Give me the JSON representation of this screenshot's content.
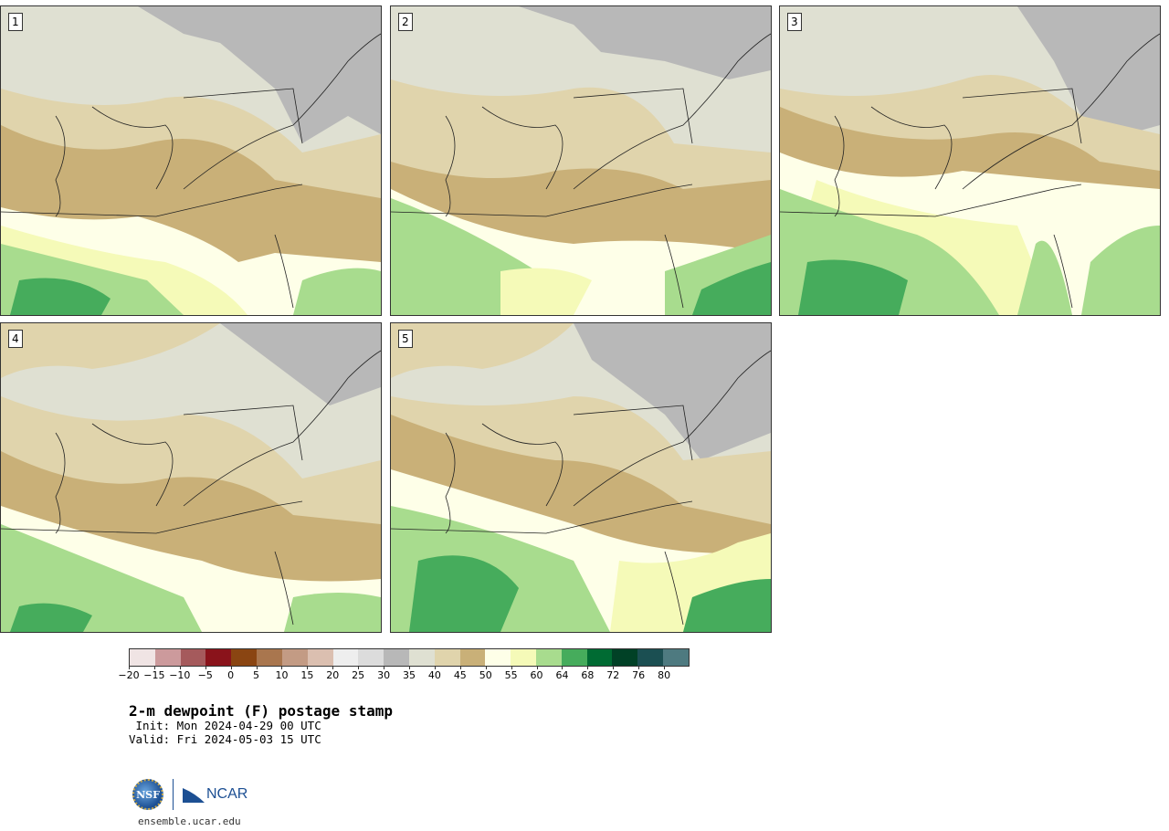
{
  "panels": [
    {
      "label": "1"
    },
    {
      "label": "2"
    },
    {
      "label": "3"
    },
    {
      "label": "4"
    },
    {
      "label": "5"
    }
  ],
  "colorbar": {
    "colors": [
      "#f0e4e4",
      "#cc9a9c",
      "#a55a5c",
      "#8a131b",
      "#8a4512",
      "#a9764e",
      "#c39b84",
      "#dbbfb0",
      "#eeeeee",
      "#dcdcdc",
      "#b8b8b8",
      "#dfe0d2",
      "#e0d4ac",
      "#c9b078",
      "#feffe8",
      "#f5fab8",
      "#a8dc8e",
      "#46ac5c",
      "#006b33",
      "#014126",
      "#1b4f52",
      "#4e7a80"
    ],
    "ticks": [
      "−20",
      "−15",
      "−10",
      "−5",
      "0",
      "5",
      "10",
      "15",
      "20",
      "25",
      "30",
      "35",
      "40",
      "45",
      "50",
      "55",
      "60",
      "64",
      "68",
      "72",
      "76",
      "80"
    ]
  },
  "title": "2-m dewpoint (F) postage stamp",
  "init": " Init: Mon 2024-04-29 00 UTC",
  "valid": "Valid: Fri 2024-05-03 15 UTC",
  "logos": {
    "nsf": "NSF",
    "ncar": "NCAR"
  },
  "url": "ensemble.ucar.edu"
}
